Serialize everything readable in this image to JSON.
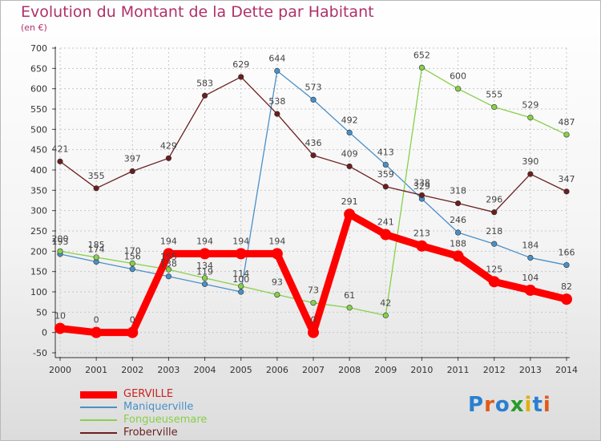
{
  "title": "Evolution du Montant de la Dette par Habitant",
  "unit_label": "(en €)",
  "logo_text": "Proxiti",
  "chart_data": {
    "type": "line",
    "title": "Evolution du Montant de la Dette par Habitant",
    "ylabel": "(en €)",
    "xlabel": "",
    "x": [
      "2000",
      "2001",
      "2002",
      "2003",
      "2004",
      "2005",
      "2006",
      "2007",
      "2008",
      "2009",
      "2010",
      "2011",
      "2012",
      "2013",
      "2014"
    ],
    "ylim": [
      -50,
      700
    ],
    "yticks": [
      -50,
      0,
      50,
      100,
      150,
      200,
      250,
      300,
      350,
      400,
      450,
      500,
      550,
      600,
      650,
      700
    ],
    "grid": true,
    "legend_position": "bottom-left",
    "series": [
      {
        "name": "GERVILLE",
        "color": "#ff0000",
        "values": [
          10,
          0,
          0,
          194,
          194,
          194,
          194,
          0,
          291,
          241,
          213,
          188,
          125,
          104,
          82
        ]
      },
      {
        "name": "Maniquerville",
        "color": "#4a90c8",
        "values": [
          193,
          174,
          156,
          138,
          119,
          100,
          644,
          573,
          492,
          413,
          329,
          246,
          218,
          184,
          166
        ]
      },
      {
        "name": "Fongueusemare",
        "color": "#88d04a",
        "values": [
          200,
          185,
          170,
          155,
          134,
          114,
          93,
          73,
          61,
          42,
          652,
          600,
          555,
          529,
          487
        ]
      },
      {
        "name": "Froberville",
        "color": "#6b1f1f",
        "values": [
          421,
          355,
          397,
          429,
          583,
          629,
          538,
          436,
          409,
          359,
          338,
          318,
          296,
          390,
          347
        ]
      }
    ],
    "value_labels": [
      [
        "10",
        "0",
        "0",
        "194",
        "194",
        "194",
        "194",
        "0",
        "291",
        "241",
        "213",
        "188",
        "125",
        "104",
        "82"
      ],
      [
        "193",
        "174",
        "156",
        "138",
        "119",
        "100",
        "644",
        "573",
        "492",
        "413",
        "329",
        "246",
        "218",
        "184",
        "166"
      ],
      [
        "200",
        "185",
        "170",
        "155",
        "134",
        "114",
        "93",
        "73",
        "61",
        "42",
        "652",
        "600",
        "555",
        "529",
        "487"
      ],
      [
        "421",
        "355",
        "397",
        "429",
        "583",
        "629",
        "538",
        "436",
        "409",
        "359",
        "338",
        "318",
        "296",
        "390",
        "347"
      ]
    ]
  }
}
